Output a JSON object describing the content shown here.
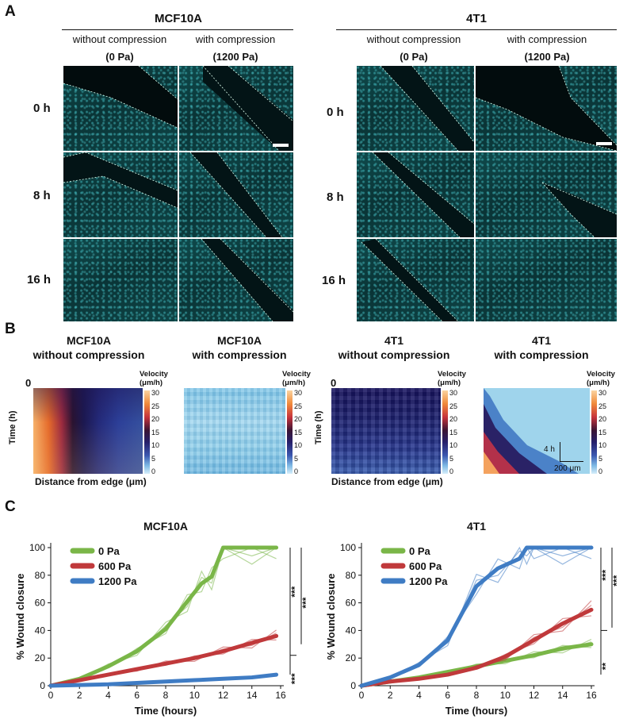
{
  "panel_a": {
    "label": "A",
    "mcf10a": {
      "title": "MCF10A",
      "col1": {
        "line1": "without compression",
        "line2": "(0 Pa)"
      },
      "col2": {
        "line1": "with compression",
        "line2": "(1200 Pa)"
      }
    },
    "t41": {
      "title": "4T1",
      "col1": {
        "line1": "without compression",
        "line2": "(0 Pa)"
      },
      "col2": {
        "line1": "with compression",
        "line2": "(1200 Pa)"
      }
    },
    "rows": [
      "0 h",
      "8 h",
      "16 h"
    ]
  },
  "panel_b": {
    "label": "B",
    "maps": [
      {
        "title1": "MCF10A",
        "title2": "without compression"
      },
      {
        "title1": "MCF10A",
        "title2": "with compression"
      },
      {
        "title1": "4T1",
        "title2": "without compression"
      },
      {
        "title1": "4T1",
        "title2": "with compression"
      }
    ],
    "velocity_label1": "Velocity",
    "velocity_label2": "(μm/h)",
    "colorbar_ticks": [
      "30",
      "25",
      "20",
      "15",
      "10",
      "5",
      "0"
    ],
    "zero_label": "0",
    "ylabel": "Time (h)",
    "xlabel": "Distance from edge (μm)",
    "scale_time": "4 h",
    "scale_dist": "200 μm"
  },
  "panel_c": {
    "label": "C",
    "ylabel": "% Wound closure",
    "xlabel": "Time (hours)",
    "sig_mcf10a": [
      "***",
      "***",
      "***"
    ],
    "sig_4t1": [
      "***",
      "**",
      "***"
    ]
  },
  "chart_data": [
    {
      "type": "line",
      "title": "MCF10A",
      "xlabel": "Time (hours)",
      "ylabel": "% Wound closure",
      "xlim": [
        0,
        16
      ],
      "ylim": [
        0,
        100
      ],
      "xticks": [
        0,
        2,
        4,
        6,
        8,
        10,
        12,
        14,
        16
      ],
      "yticks": [
        0,
        20,
        40,
        60,
        80,
        100
      ],
      "series": [
        {
          "name": "0 Pa",
          "color": "#7ab648",
          "x": [
            0,
            2,
            4,
            6,
            8,
            9.5,
            10.5,
            11.2,
            12,
            14,
            15.7
          ],
          "y": [
            0,
            5,
            14,
            25,
            41,
            61,
            74,
            79,
            100,
            100,
            100
          ]
        },
        {
          "name": "600 Pa",
          "color": "#c0393b",
          "x": [
            0,
            2,
            4,
            6,
            8,
            10,
            12,
            14,
            15.7
          ],
          "y": [
            0,
            4,
            8,
            12,
            16,
            20,
            25,
            31,
            36
          ]
        },
        {
          "name": "1200 Pa",
          "color": "#3f7cc4",
          "x": [
            0,
            2,
            4,
            6,
            8,
            10,
            12,
            14,
            15.7
          ],
          "y": [
            0,
            0.5,
            1,
            2,
            3,
            4,
            5,
            6,
            8
          ]
        }
      ]
    },
    {
      "type": "line",
      "title": "4T1",
      "xlabel": "Time (hours)",
      "ylabel": "% Wound closure",
      "xlim": [
        0,
        16
      ],
      "ylim": [
        0,
        100
      ],
      "xticks": [
        0,
        2,
        4,
        6,
        8,
        10,
        12,
        14,
        16
      ],
      "yticks": [
        0,
        20,
        40,
        60,
        80,
        100
      ],
      "series": [
        {
          "name": "0 Pa",
          "color": "#7ab648",
          "x": [
            0,
            2,
            4,
            6,
            8,
            10,
            12,
            14,
            16
          ],
          "y": [
            0,
            3,
            6,
            10,
            14,
            18,
            22,
            27,
            30
          ]
        },
        {
          "name": "600 Pa",
          "color": "#c0393b",
          "x": [
            0,
            2,
            4,
            6,
            8,
            10,
            12,
            14,
            16
          ],
          "y": [
            0,
            3,
            5,
            8,
            13,
            21,
            33,
            45,
            55
          ]
        },
        {
          "name": "1200 Pa",
          "color": "#3f7cc4",
          "x": [
            0,
            2,
            4,
            6,
            8,
            9.5,
            11,
            11.5,
            12,
            14,
            16
          ],
          "y": [
            0,
            6,
            15,
            33,
            72,
            85,
            92,
            100,
            100,
            100,
            100
          ]
        }
      ]
    }
  ]
}
